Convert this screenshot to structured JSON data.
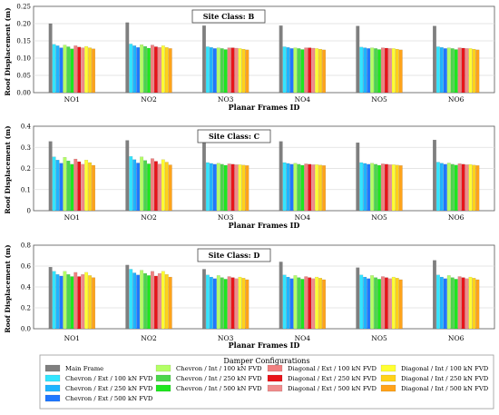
{
  "colors": {
    "Main Frame": "#7f7f7f",
    "Chevron / Ext / 100 kN FVD": "#33e5ff",
    "Chevron / Ext / 250 kN FVD": "#1fb4ff",
    "Chevron / Ext / 500 kN FVD": "#1f78ff",
    "Chevron / Int / 100 kN FVD": "#b3ff66",
    "Chevron / Int / 250 kN FVD": "#4cd64c",
    "Chevron / Int / 500 kN FVD": "#1fe61f",
    "Diagonal / Ext / 100 kN FVD": "#f08080",
    "Diagonal / Ext / 250 kN FVD": "#e8141a",
    "Diagonal / Ext / 500 kN FVD": "#f08c8c",
    "Diagonal / Int / 100 kN FVD": "#ffff33",
    "Diagonal / Int / 250 kN FVD": "#ffd21a",
    "Diagonal / Int / 500 kN FVD": "#ffa31a"
  },
  "legend": {
    "title": "Damper Configurations",
    "entries": [
      "Main Frame",
      "Chevron / Ext / 100 kN FVD",
      "Chevron / Ext / 250 kN FVD",
      "Chevron / Ext / 500 kN FVD",
      "Chevron / Int / 100 kN FVD",
      "Chevron / Int / 250 kN FVD",
      "Chevron / Int / 500 kN FVD",
      "Diagonal / Ext / 100 kN FVD",
      "Diagonal / Ext / 250 kN FVD",
      "Diagonal / Ext / 500 kN FVD",
      "Diagonal / Int / 100 kN FVD",
      "Diagonal / Int / 250 kN FVD",
      "Diagonal / Int / 500 kN FVD"
    ]
  },
  "chart_data": [
    {
      "type": "bar",
      "title": "Site Class: B",
      "xlabel": "Planar Frames ID",
      "ylabel": "Roof Displacement (m)",
      "ylim": [
        0,
        0.25
      ],
      "yticks": [
        "0.00",
        "0.05",
        "0.10",
        "0.15",
        "0.20",
        "0.25"
      ],
      "categories": [
        "NO1",
        "NO2",
        "NO3",
        "NO4",
        "NO5",
        "NO6"
      ],
      "series": [
        {
          "name": "Main Frame",
          "values": [
            0.2,
            0.203,
            0.194,
            0.194,
            0.193,
            0.193
          ]
        },
        {
          "name": "Chevron / Ext / 100 kN FVD",
          "values": [
            0.14,
            0.141,
            0.133,
            0.133,
            0.132,
            0.133
          ]
        },
        {
          "name": "Chevron / Ext / 250 kN FVD",
          "values": [
            0.136,
            0.136,
            0.131,
            0.131,
            0.13,
            0.131
          ]
        },
        {
          "name": "Chevron / Ext / 500 kN FVD",
          "values": [
            0.13,
            0.131,
            0.128,
            0.128,
            0.128,
            0.128
          ]
        },
        {
          "name": "Chevron / Int / 100 kN FVD",
          "values": [
            0.138,
            0.139,
            0.13,
            0.13,
            0.13,
            0.13
          ]
        },
        {
          "name": "Chevron / Int / 250 kN FVD",
          "values": [
            0.133,
            0.134,
            0.128,
            0.128,
            0.128,
            0.128
          ]
        },
        {
          "name": "Chevron / Int / 500 kN FVD",
          "values": [
            0.127,
            0.129,
            0.125,
            0.125,
            0.125,
            0.125
          ]
        },
        {
          "name": "Diagonal / Ext / 100 kN FVD",
          "values": [
            0.136,
            0.138,
            0.13,
            0.13,
            0.13,
            0.13
          ]
        },
        {
          "name": "Diagonal / Ext / 250 kN FVD",
          "values": [
            0.132,
            0.133,
            0.13,
            0.13,
            0.129,
            0.129
          ]
        },
        {
          "name": "Diagonal / Ext / 500 kN FVD",
          "values": [
            0.13,
            0.131,
            0.129,
            0.129,
            0.128,
            0.128
          ]
        },
        {
          "name": "Diagonal / Int / 100 kN FVD",
          "values": [
            0.134,
            0.136,
            0.128,
            0.128,
            0.128,
            0.128
          ]
        },
        {
          "name": "Diagonal / Int / 250 kN FVD",
          "values": [
            0.13,
            0.131,
            0.126,
            0.126,
            0.126,
            0.126
          ]
        },
        {
          "name": "Diagonal / Int / 500 kN FVD",
          "values": [
            0.127,
            0.128,
            0.124,
            0.124,
            0.124,
            0.124
          ]
        }
      ]
    },
    {
      "type": "bar",
      "title": "Site Class: C",
      "xlabel": "Planar Frames ID",
      "ylabel": "Roof Displacement (m)",
      "ylim": [
        0,
        0.4
      ],
      "yticks": [
        "0",
        "0.1",
        "0.2",
        "0.3",
        "0.4"
      ],
      "categories": [
        "NO1",
        "NO2",
        "NO3",
        "NO4",
        "NO5",
        "NO6"
      ],
      "series": [
        {
          "name": "Main Frame",
          "values": [
            0.328,
            0.333,
            0.323,
            0.328,
            0.322,
            0.335
          ]
        },
        {
          "name": "Chevron / Ext / 100 kN FVD",
          "values": [
            0.255,
            0.257,
            0.228,
            0.228,
            0.228,
            0.23
          ]
        },
        {
          "name": "Chevron / Ext / 250 kN FVD",
          "values": [
            0.24,
            0.242,
            0.224,
            0.224,
            0.224,
            0.225
          ]
        },
        {
          "name": "Chevron / Ext / 500 kN FVD",
          "values": [
            0.225,
            0.226,
            0.22,
            0.22,
            0.22,
            0.22
          ]
        },
        {
          "name": "Chevron / Int / 100 kN FVD",
          "values": [
            0.253,
            0.255,
            0.225,
            0.225,
            0.225,
            0.226
          ]
        },
        {
          "name": "Chevron / Int / 250 kN FVD",
          "values": [
            0.236,
            0.238,
            0.22,
            0.22,
            0.22,
            0.22
          ]
        },
        {
          "name": "Chevron / Int / 500 kN FVD",
          "values": [
            0.22,
            0.222,
            0.215,
            0.215,
            0.215,
            0.216
          ]
        },
        {
          "name": "Diagonal / Ext / 100 kN FVD",
          "values": [
            0.245,
            0.247,
            0.222,
            0.222,
            0.222,
            0.223
          ]
        },
        {
          "name": "Diagonal / Ext / 250 kN FVD",
          "values": [
            0.232,
            0.234,
            0.22,
            0.22,
            0.22,
            0.22
          ]
        },
        {
          "name": "Diagonal / Ext / 500 kN FVD",
          "values": [
            0.22,
            0.221,
            0.218,
            0.218,
            0.218,
            0.218
          ]
        },
        {
          "name": "Diagonal / Int / 100 kN FVD",
          "values": [
            0.24,
            0.242,
            0.218,
            0.218,
            0.218,
            0.219
          ]
        },
        {
          "name": "Diagonal / Int / 250 kN FVD",
          "values": [
            0.228,
            0.23,
            0.216,
            0.216,
            0.216,
            0.216
          ]
        },
        {
          "name": "Diagonal / Int / 500 kN FVD",
          "values": [
            0.215,
            0.217,
            0.214,
            0.214,
            0.214,
            0.214
          ]
        }
      ]
    },
    {
      "type": "bar",
      "title": "Site Class: D",
      "xlabel": "Planar Frames ID",
      "ylabel": "Roof Displacement (m)",
      "ylim": [
        0,
        0.8
      ],
      "yticks": [
        "0.0",
        "0.2",
        "0.4",
        "0.6",
        "0.8"
      ],
      "categories": [
        "NO1",
        "NO2",
        "NO3",
        "NO4",
        "NO5",
        "NO6"
      ],
      "series": [
        {
          "name": "Main Frame",
          "values": [
            0.59,
            0.61,
            0.57,
            0.64,
            0.585,
            0.655
          ]
        },
        {
          "name": "Chevron / Ext / 100 kN FVD",
          "values": [
            0.55,
            0.57,
            0.515,
            0.515,
            0.515,
            0.515
          ]
        },
        {
          "name": "Chevron / Ext / 250 kN FVD",
          "values": [
            0.52,
            0.535,
            0.495,
            0.495,
            0.495,
            0.495
          ]
        },
        {
          "name": "Chevron / Ext / 500 kN FVD",
          "values": [
            0.505,
            0.515,
            0.48,
            0.48,
            0.48,
            0.48
          ]
        },
        {
          "name": "Chevron / Int / 100 kN FVD",
          "values": [
            0.55,
            0.56,
            0.51,
            0.51,
            0.51,
            0.51
          ]
        },
        {
          "name": "Chevron / Int / 250 kN FVD",
          "values": [
            0.52,
            0.53,
            0.49,
            0.49,
            0.49,
            0.49
          ]
        },
        {
          "name": "Chevron / Int / 500 kN FVD",
          "values": [
            0.5,
            0.51,
            0.475,
            0.475,
            0.475,
            0.475
          ]
        },
        {
          "name": "Diagonal / Ext / 100 kN FVD",
          "values": [
            0.54,
            0.55,
            0.5,
            0.5,
            0.5,
            0.5
          ]
        },
        {
          "name": "Diagonal / Ext / 250 kN FVD",
          "values": [
            0.5,
            0.505,
            0.49,
            0.49,
            0.49,
            0.49
          ]
        },
        {
          "name": "Diagonal / Ext / 500 kN FVD",
          "values": [
            0.52,
            0.53,
            0.48,
            0.48,
            0.48,
            0.48
          ]
        },
        {
          "name": "Diagonal / Int / 100 kN FVD",
          "values": [
            0.54,
            0.55,
            0.495,
            0.495,
            0.495,
            0.495
          ]
        },
        {
          "name": "Diagonal / Int / 250 kN FVD",
          "values": [
            0.51,
            0.52,
            0.485,
            0.485,
            0.485,
            0.485
          ]
        },
        {
          "name": "Diagonal / Int / 500 kN FVD",
          "values": [
            0.49,
            0.495,
            0.47,
            0.47,
            0.47,
            0.47
          ]
        }
      ]
    }
  ]
}
